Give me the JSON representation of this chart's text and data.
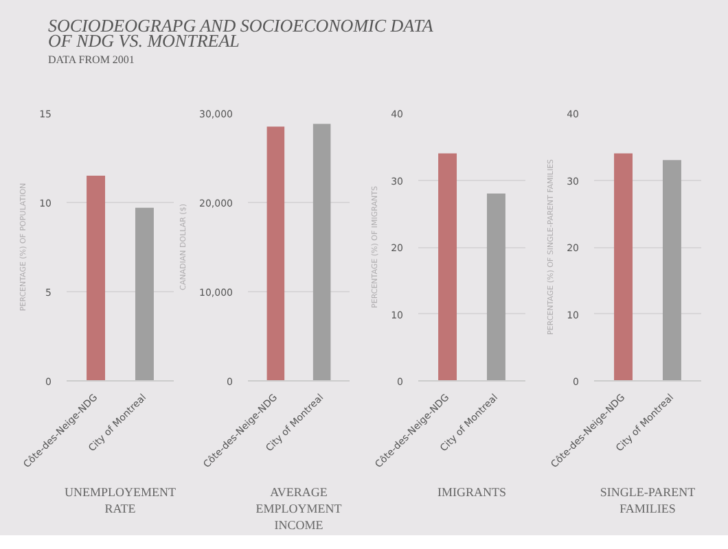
{
  "chart_data": [
    {
      "type": "bar",
      "title": "SOCIODEOGRAPG AND SOCIOECONOMIC DATA OF NDG VS. MONTREAL",
      "subtitle": "DATA FROM 2001",
      "categories": [
        "Côte-des-Neige-NDG",
        "City of Montreal"
      ],
      "values": [
        11.5,
        9.7
      ],
      "colors": [
        "#c07575",
        "#a0a0a0"
      ],
      "xlabel": "UNEMPLOYEMENT RATE",
      "ylabel": "PERCENTAGE (%) OF POPULATION",
      "ylim": [
        0,
        15
      ],
      "yticks": [
        0,
        5,
        10,
        15
      ],
      "grid": "y"
    },
    {
      "type": "bar",
      "categories": [
        "Côte-des-Neige-NDG",
        "City of Montreal"
      ],
      "values": [
        28500,
        28800
      ],
      "colors": [
        "#c07575",
        "#a0a0a0"
      ],
      "xlabel": "AVERAGE EMPLOYMENT INCOME",
      "ylabel": "CANADIAN DOLLAR ($)",
      "ylim": [
        0,
        30000
      ],
      "yticks": [
        0,
        {
          "value": 10000,
          "label": "10,000"
        },
        {
          "value": 20000,
          "label": "20,000"
        },
        {
          "value": 30000,
          "label": "30,000"
        }
      ],
      "grid": "y"
    },
    {
      "type": "bar",
      "categories": [
        "Côte-des-Neige-NDG",
        "City of Montreal"
      ],
      "values": [
        34,
        28
      ],
      "colors": [
        "#c07575",
        "#a0a0a0"
      ],
      "xlabel": "IMIGRANTS",
      "ylabel": "PERCENTAGE (%) OF IMIGRANTS",
      "ylim": [
        0,
        40
      ],
      "yticks": [
        0,
        10,
        20,
        30,
        40
      ],
      "grid": "y"
    },
    {
      "type": "bar",
      "categories": [
        "Côte-des-Neige-NDG",
        "City of Montreal"
      ],
      "values": [
        34,
        33
      ],
      "colors": [
        "#c07575",
        "#a0a0a0"
      ],
      "xlabel": "SINGLE-PARENT FAMILIES",
      "ylabel": "PERCENTAGE (%) OF SINGLE-PARENT FAMILIES",
      "ylim": [
        0,
        40
      ],
      "yticks": [
        0,
        10,
        20,
        30,
        40
      ],
      "grid": "y"
    }
  ]
}
